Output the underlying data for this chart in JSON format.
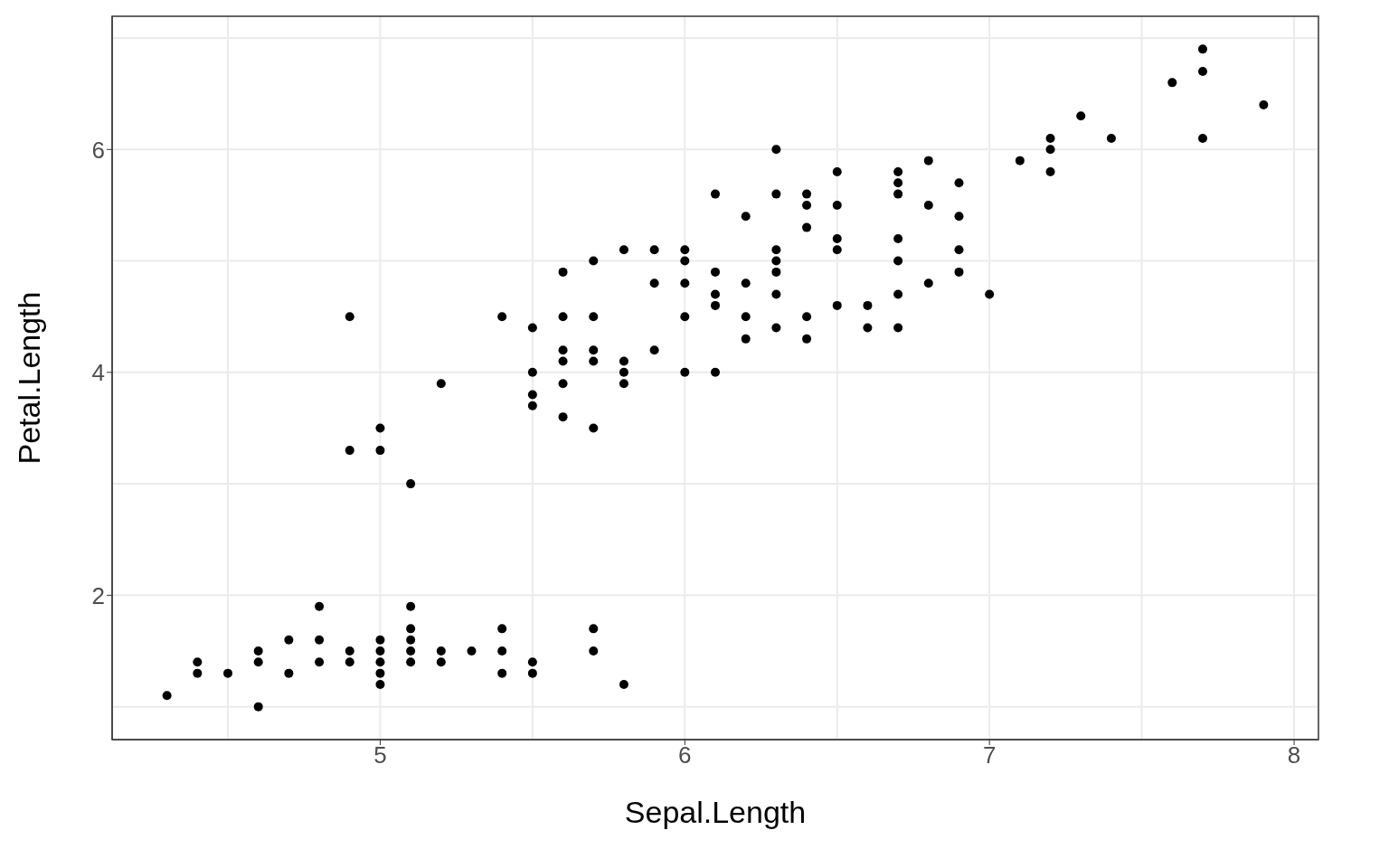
{
  "chart_data": {
    "type": "scatter",
    "xlabel": "Sepal.Length",
    "ylabel": "Petal.Length",
    "xlim": [
      4.12,
      8.08
    ],
    "ylim": [
      0.705,
      7.195
    ],
    "xticks": [
      5,
      6,
      7,
      8
    ],
    "yticks": [
      2,
      4,
      6
    ],
    "grid": true,
    "marker": "circle",
    "legend": false,
    "series": [
      {
        "color": "#000000",
        "x": [
          4.3,
          4.4,
          4.4,
          4.5,
          4.6,
          4.6,
          4.6,
          4.7,
          4.7,
          4.8,
          4.8,
          4.8,
          4.9,
          4.9,
          4.9,
          4.9,
          5.0,
          5.0,
          5.0,
          5.0,
          5.0,
          5.0,
          5.0,
          5.1,
          5.1,
          5.1,
          5.1,
          5.1,
          5.1,
          5.2,
          5.2,
          5.2,
          5.3,
          5.4,
          5.4,
          5.4,
          5.4,
          5.5,
          5.5,
          5.5,
          5.5,
          5.5,
          5.5,
          5.6,
          5.6,
          5.6,
          5.6,
          5.6,
          5.6,
          5.7,
          5.7,
          5.7,
          5.7,
          5.7,
          5.7,
          5.7,
          5.8,
          5.8,
          5.8,
          5.8,
          5.8,
          5.9,
          5.9,
          5.9,
          6.0,
          6.0,
          6.0,
          6.0,
          6.0,
          6.1,
          6.1,
          6.1,
          6.1,
          6.1,
          6.2,
          6.2,
          6.2,
          6.2,
          6.3,
          6.3,
          6.3,
          6.3,
          6.3,
          6.3,
          6.3,
          6.4,
          6.4,
          6.4,
          6.4,
          6.4,
          6.5,
          6.5,
          6.5,
          6.5,
          6.5,
          6.6,
          6.6,
          6.7,
          6.7,
          6.7,
          6.7,
          6.7,
          6.7,
          6.7,
          6.8,
          6.8,
          6.8,
          6.9,
          6.9,
          6.9,
          6.9,
          7.0,
          7.1,
          7.2,
          7.2,
          7.2,
          7.3,
          7.4,
          7.6,
          7.7,
          7.7,
          7.7,
          7.9
        ],
        "values": [
          1.1,
          1.4,
          1.3,
          1.3,
          1.5,
          1.4,
          1.0,
          1.3,
          1.6,
          1.6,
          1.4,
          1.9,
          1.4,
          1.5,
          3.3,
          4.5,
          1.4,
          1.5,
          1.6,
          1.2,
          1.3,
          3.5,
          3.3,
          1.4,
          1.5,
          1.7,
          1.9,
          1.6,
          3.0,
          1.5,
          1.4,
          3.9,
          1.5,
          1.7,
          1.5,
          1.3,
          4.5,
          1.4,
          1.3,
          4.0,
          3.8,
          3.7,
          4.4,
          3.6,
          4.5,
          3.9,
          4.1,
          4.2,
          4.9,
          1.5,
          1.7,
          4.5,
          3.5,
          4.2,
          4.1,
          5.0,
          1.2,
          4.1,
          3.9,
          4.0,
          5.1,
          4.2,
          4.8,
          5.1,
          4.0,
          4.5,
          5.1,
          5.0,
          4.8,
          4.7,
          4.0,
          4.6,
          4.9,
          5.6,
          4.5,
          4.3,
          4.8,
          5.4,
          4.7,
          4.9,
          4.4,
          6.0,
          5.6,
          5.1,
          5.0,
          4.5,
          4.3,
          5.3,
          5.6,
          5.5,
          4.6,
          5.8,
          5.1,
          5.5,
          5.2,
          4.6,
          4.4,
          4.4,
          5.0,
          4.7,
          5.8,
          5.7,
          5.6,
          5.2,
          4.8,
          5.5,
          5.9,
          4.9,
          5.7,
          5.4,
          5.1,
          4.7,
          5.9,
          6.1,
          6.0,
          5.8,
          6.3,
          6.1,
          6.6,
          6.7,
          6.9,
          6.1,
          6.4
        ]
      }
    ]
  }
}
